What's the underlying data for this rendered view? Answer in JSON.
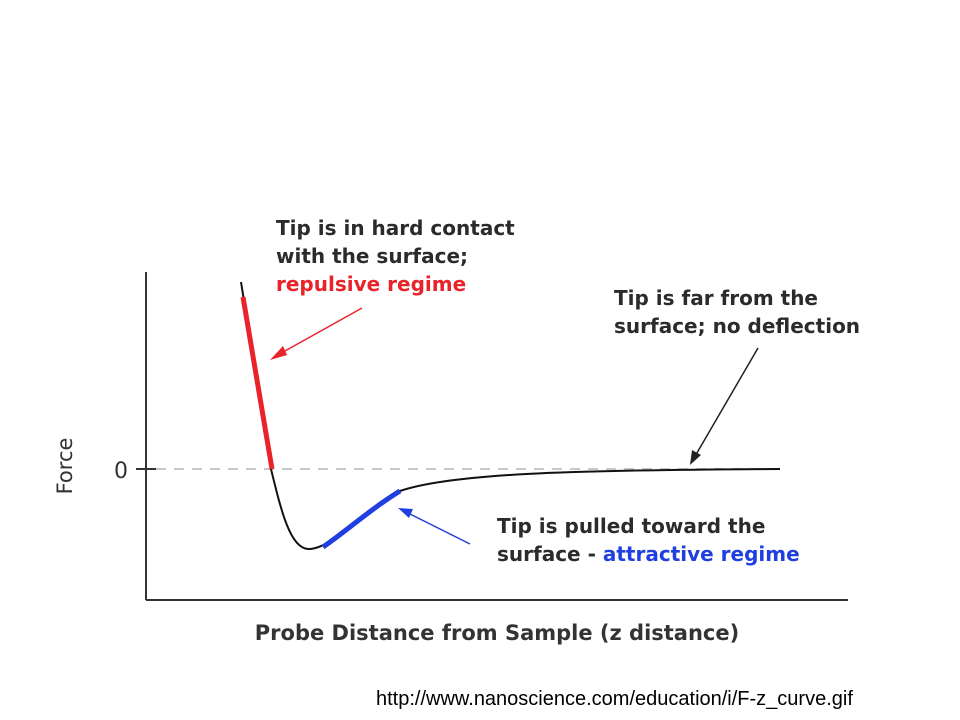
{
  "chart_data": {
    "type": "line",
    "title": "",
    "xlabel": "Probe Distance from Sample (z distance)",
    "ylabel": "Force",
    "y_ticks": [
      "0"
    ],
    "zero_line": "dashed",
    "grid": false,
    "series": [
      {
        "segment": "curve",
        "color": "#111111"
      },
      {
        "segment": "repulsive",
        "color": "#e8232a"
      },
      {
        "segment": "attractive",
        "color": "#1f3fe0"
      }
    ],
    "annotations": [
      {
        "id": "repulsive",
        "lines": [
          "Tip is in hard contact",
          "with the surface;"
        ],
        "highlight": "repulsive regime",
        "highlight_color": "#e8232a",
        "arrow_color": "#e8232a"
      },
      {
        "id": "far",
        "lines": [
          "Tip is far from the",
          "surface; no deflection"
        ],
        "arrow_color": "#222222"
      },
      {
        "id": "attractive",
        "lines": [
          "Tip is pulled toward the"
        ],
        "prefix": "surface - ",
        "highlight": "attractive regime",
        "highlight_color": "#1f3fe0",
        "arrow_color": "#1f3fe0"
      }
    ]
  },
  "credit": "http://www.nanoscience.com/education/i/F-z_curve.gif"
}
